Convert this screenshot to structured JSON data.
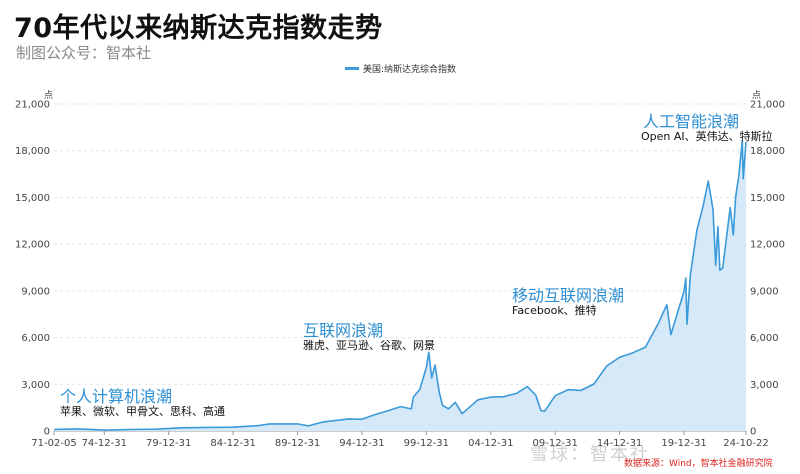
{
  "header": {
    "title": "70年代以来纳斯达克指数走势",
    "subtitle": "制图公众号：智本社"
  },
  "legend": {
    "label": "美国:纳斯达克综合指数",
    "color": "#3b9ad9"
  },
  "units": {
    "left": "点",
    "right": "点"
  },
  "annotations": [
    {
      "title": "个人计算机浪潮",
      "sub": "苹果、微软、甲骨文、思科、高通"
    },
    {
      "title": "互联网浪潮",
      "sub": "雅虎、亚马逊、谷歌、网景"
    },
    {
      "title": "移动互联网浪潮",
      "sub": "Facebook、推特"
    },
    {
      "title": "人工智能浪潮",
      "sub": "Open AI、英伟达、特斯拉"
    }
  ],
  "source": "数据来源：Wind，智本社金融研究院",
  "watermark": "雪球：智本社",
  "chart_data": {
    "type": "area",
    "series": [
      {
        "name": "美国:纳斯达克综合指数",
        "color": "#3b9ad9",
        "x": [
          "1971-02-05",
          "1972-12-31",
          "1974-12-31",
          "1976-12-31",
          "1978-12-31",
          "1980-12-31",
          "1982-12-31",
          "1984-12-31",
          "1986-12-31",
          "1987-10-31",
          "1989-12-31",
          "1990-10-31",
          "1991-12-31",
          "1993-12-31",
          "1994-12-31",
          "1995-12-31",
          "1996-12-31",
          "1997-12-31",
          "1998-10-31",
          "1998-12-31",
          "1999-06-30",
          "1999-12-31",
          "2000-03-10",
          "2000-05-31",
          "2000-09-01",
          "2000-12-31",
          "2001-04-04",
          "2001-09-21",
          "2002-03-31",
          "2002-10-09",
          "2003-12-31",
          "2004-12-31",
          "2005-12-31",
          "2006-12-31",
          "2007-10-31",
          "2008-06-30",
          "2008-11-20",
          "2009-03-09",
          "2009-12-31",
          "2010-12-31",
          "2011-12-31",
          "2012-12-31",
          "2013-12-31",
          "2014-12-31",
          "2015-12-31",
          "2016-12-31",
          "2017-12-31",
          "2018-08-31",
          "2018-12-24",
          "2019-12-31",
          "2020-02-19",
          "2020-03-23",
          "2020-06-30",
          "2020-12-31",
          "2021-06-30",
          "2021-11-19",
          "2022-03-31",
          "2022-06-16",
          "2022-08-16",
          "2022-10-13",
          "2022-12-31",
          "2023-07-31",
          "2023-10-27",
          "2023-12-31",
          "2024-03-31",
          "2024-07-10",
          "2024-08-05",
          "2024-10-22"
        ],
        "values": [
          100,
          134,
          60,
          97,
          117,
          203,
          232,
          247,
          349,
          455,
          454,
          330,
          586,
          777,
          752,
          1052,
          1291,
          1570,
          1420,
          2193,
          2686,
          4069,
          5048,
          3400,
          4234,
          2471,
          1638,
          1423,
          1845,
          1114,
          2003,
          2175,
          2205,
          2415,
          2859,
          2292,
          1316,
          1269,
          2269,
          2653,
          2605,
          3020,
          4177,
          4736,
          5007,
          5383,
          6903,
          8109,
          6193,
          8973,
          9817,
          6860,
          10058,
          12888,
          14504,
          16057,
          14221,
          10646,
          13128,
          10321,
          10466,
          14346,
          12595,
          15011,
          16379,
          18647,
          16196,
          18573
        ]
      }
    ],
    "x_tick_labels": [
      "71-02-05",
      "74-12-31",
      "79-12-31",
      "84-12-31",
      "89-12-31",
      "94-12-31",
      "99-12-31",
      "04-12-31",
      "09-12-31",
      "14-12-31",
      "19-12-31",
      "24-10-22"
    ],
    "x_tick_dates": [
      "1971-02-05",
      "1974-12-31",
      "1979-12-31",
      "1984-12-31",
      "1989-12-31",
      "1994-12-31",
      "1999-12-31",
      "2004-12-31",
      "2009-12-31",
      "2014-12-31",
      "2019-12-31",
      "2024-10-22"
    ],
    "y_ticks": [
      "0",
      "3,000",
      "6,000",
      "9,000",
      "12,000",
      "15,000",
      "18,000",
      "21,000"
    ],
    "ylim": [
      0,
      21000
    ],
    "grid": true,
    "legend_position": "top-center",
    "title": "70年代以来纳斯达克指数走势",
    "xlabel": "",
    "ylabel": "点"
  }
}
